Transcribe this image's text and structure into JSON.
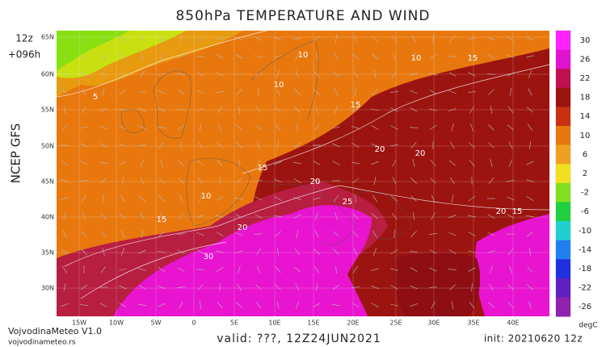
{
  "title": "850hPa TEMPERATURE AND WIND",
  "run_label": "12z",
  "forecast_label": "+096h",
  "model_label": "NCEP GFS",
  "brand": "VojvodinaMeteo V1.0",
  "website": "vojvodinameteo.rs",
  "valid": "valid: ???, 12Z24JUN2021",
  "init": "init: 20210620 12z",
  "colorbar": {
    "unit": "degC",
    "ticks": [
      30,
      26,
      22,
      18,
      14,
      10,
      6,
      2,
      -2,
      -6,
      -10,
      -14,
      -18,
      -22,
      -26
    ]
  },
  "lat_labels": [
    "65N",
    "60N",
    "55N",
    "50N",
    "45N",
    "40N",
    "35N",
    "30N"
  ],
  "lon_labels": [
    "15W",
    "10W",
    "5W",
    "0",
    "5E",
    "10E",
    "15E",
    "20E",
    "25E",
    "30E",
    "35E",
    "40E"
  ],
  "contour_labels": [
    10,
    10,
    5,
    10,
    15,
    15,
    20,
    20,
    10,
    15,
    20,
    25,
    20,
    20,
    15,
    15,
    30
  ]
}
